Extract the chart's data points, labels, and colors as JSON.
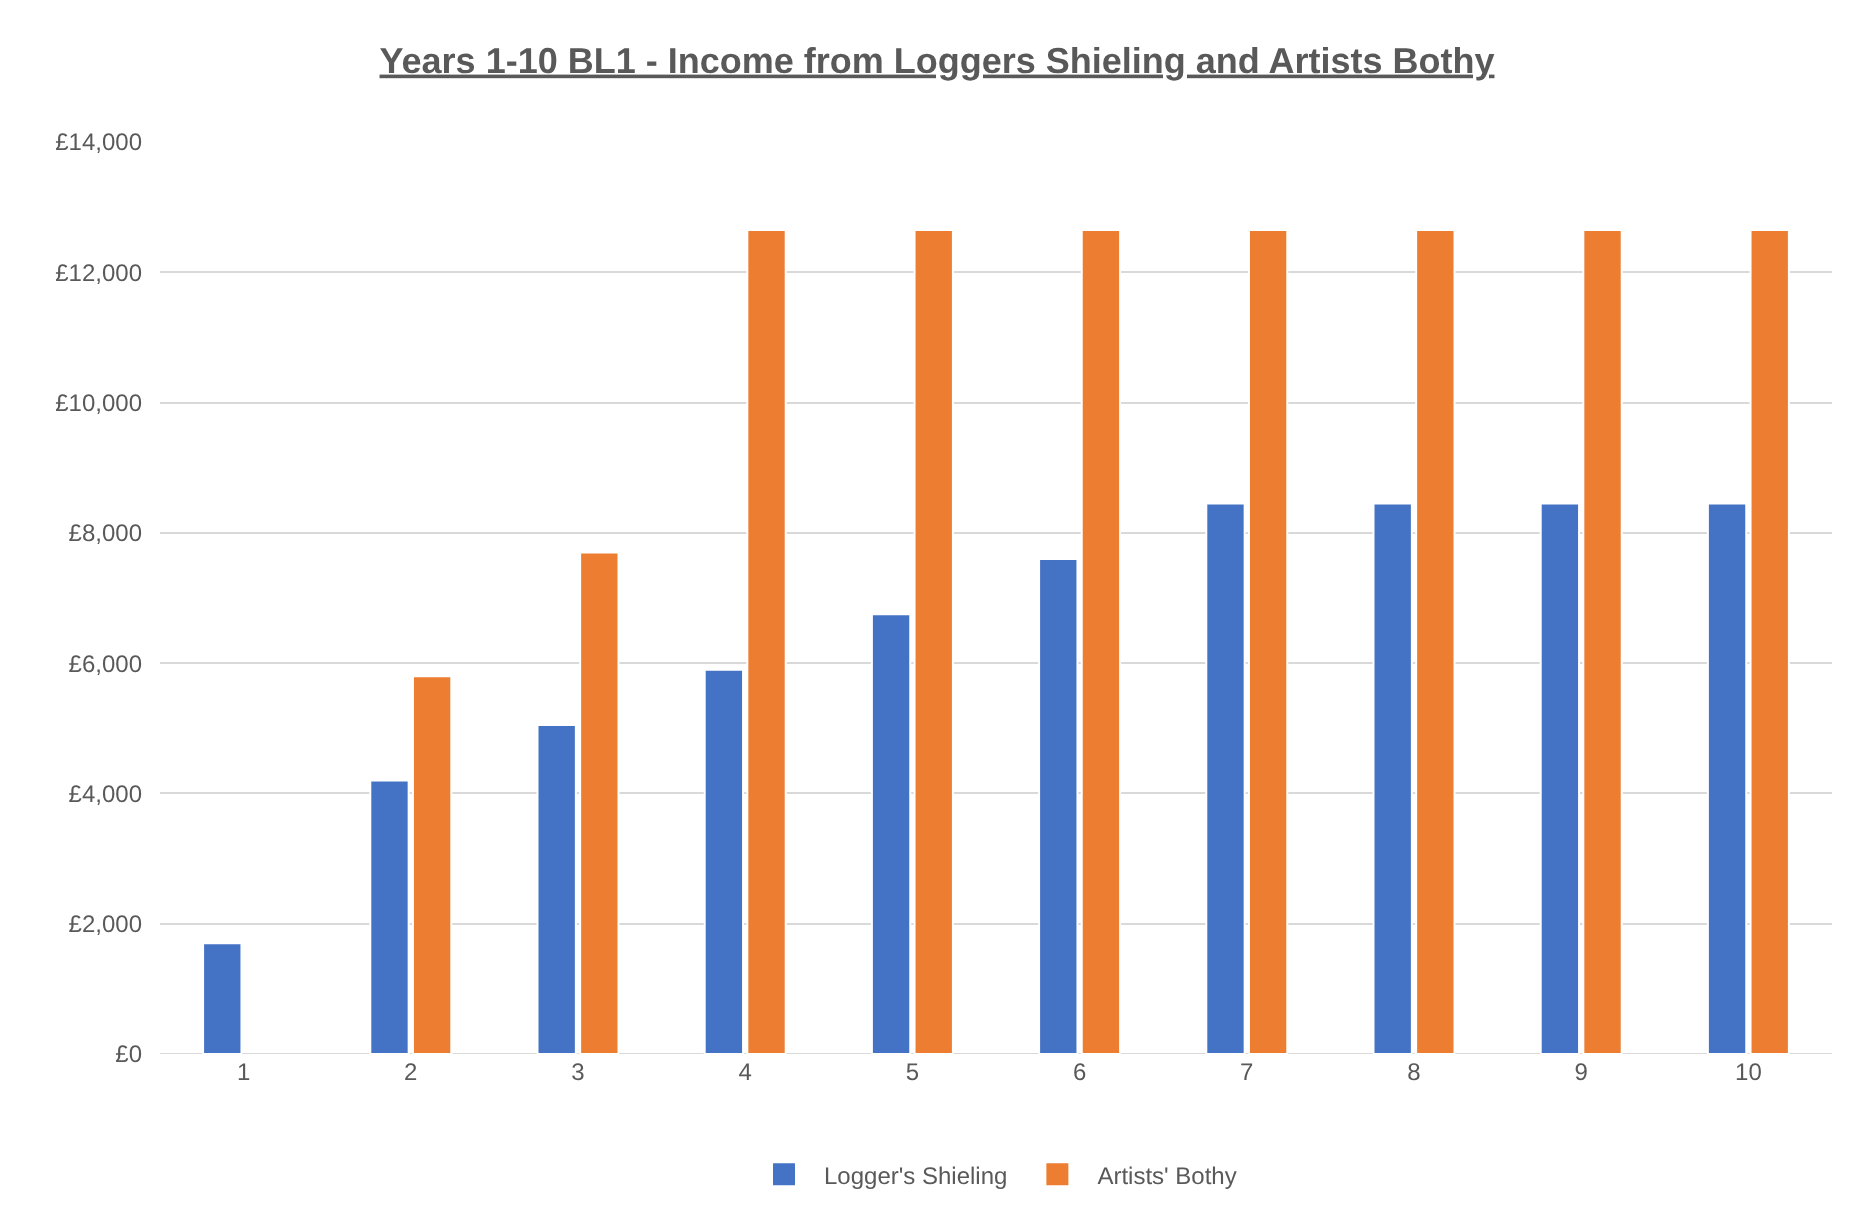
{
  "chart_data": {
    "type": "bar",
    "title": "Years 1-10 BL1 - Income from Loggers Shieling and Artists Bothy",
    "categories": [
      "1",
      "2",
      "3",
      "4",
      "5",
      "6",
      "7",
      "8",
      "9",
      "10"
    ],
    "series": [
      {
        "name": "Logger's Shieling",
        "color": "#4472c4",
        "values": [
          1700,
          4200,
          5050,
          5900,
          6750,
          7600,
          8450,
          8450,
          8450,
          8450
        ]
      },
      {
        "name": "Artists' Bothy",
        "color": "#ed7d31",
        "values": [
          null,
          5800,
          7700,
          12650,
          12650,
          12650,
          12650,
          12650,
          12650,
          12650
        ]
      }
    ],
    "ylim": [
      0,
      14000
    ],
    "yticks": [
      {
        "value": 0,
        "label": "£0"
      },
      {
        "value": 2000,
        "label": "£2,000"
      },
      {
        "value": 4000,
        "label": "£4,000"
      },
      {
        "value": 6000,
        "label": "£6,000"
      },
      {
        "value": 8000,
        "label": "£8,000"
      },
      {
        "value": 10000,
        "label": "£10,000"
      },
      {
        "value": 12000,
        "label": "£12,000"
      },
      {
        "value": 14000,
        "label": "£14,000"
      }
    ],
    "grid": "y",
    "legend": "bottom"
  }
}
